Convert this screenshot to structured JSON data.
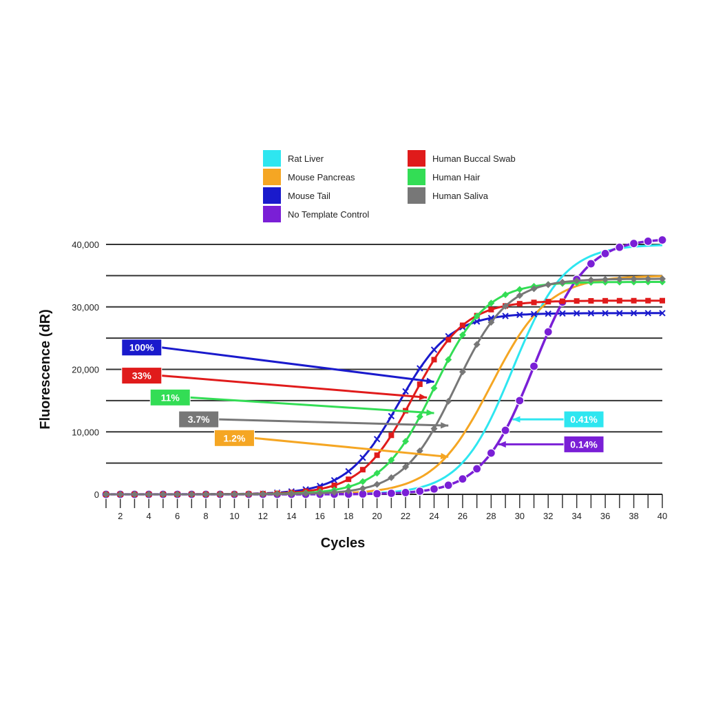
{
  "chart_data": {
    "type": "line",
    "xlabel": "Cycles",
    "ylabel": "Fluorescence (dR)",
    "xlim": [
      1,
      40
    ],
    "ylim": [
      0,
      40000
    ],
    "x_ticks": [
      "2",
      "4",
      "6",
      "8",
      "10",
      "12",
      "14",
      "16",
      "18",
      "20",
      "22",
      "24",
      "26",
      "28",
      "30",
      "32",
      "34",
      "36",
      "38",
      "40"
    ],
    "y_ticks": [
      "0",
      "10,000",
      "20,000",
      "30,000",
      "40,000"
    ],
    "gridlines_y": [
      0,
      5000,
      10000,
      15000,
      20000,
      25000,
      30000,
      35000,
      40000
    ],
    "legend_position": "top-center",
    "series": [
      {
        "name": "Rat Liver",
        "color": "#2ee6f0",
        "marker": "none",
        "ct": 29.5,
        "plateau": 40000,
        "k": 0.55
      },
      {
        "name": "Mouse Pancreas",
        "color": "#f5a623",
        "marker": "none",
        "ct": 28.0,
        "plateau": 35000,
        "k": 0.5
      },
      {
        "name": "Mouse Tail",
        "color": "#1a1acc",
        "marker": "x",
        "ct": 21.5,
        "plateau": 29000,
        "k": 0.55
      },
      {
        "name": "No Template Control",
        "color": "#7a1fd6",
        "marker": "circle",
        "ct": 31.0,
        "plateau": 41000,
        "k": 0.55
      },
      {
        "name": "Human Buccal Swab",
        "color": "#e01b1b",
        "marker": "square",
        "ct": 22.5,
        "plateau": 31000,
        "k": 0.55
      },
      {
        "name": "Human Hair",
        "color": "#33dd55",
        "marker": "diamond",
        "ct": 24.0,
        "plateau": 34000,
        "k": 0.55
      },
      {
        "name": "Human Saliva",
        "color": "#777777",
        "marker": "diamond",
        "ct": 25.5,
        "plateau": 34500,
        "k": 0.55
      }
    ],
    "annotations": [
      {
        "text": "100%",
        "color": "#1a1acc",
        "x": 24,
        "y": 18000,
        "label_x": 3.5,
        "label_y": 23500
      },
      {
        "text": "33%",
        "color": "#e01b1b",
        "x": 23.5,
        "y": 15500,
        "label_x": 3.5,
        "label_y": 19000
      },
      {
        "text": "11%",
        "color": "#33dd55",
        "x": 24,
        "y": 13000,
        "label_x": 5.5,
        "label_y": 15500
      },
      {
        "text": "3.7%",
        "color": "#777777",
        "x": 25,
        "y": 11000,
        "label_x": 7.5,
        "label_y": 12000
      },
      {
        "text": "1.2%",
        "color": "#f5a623",
        "x": 25,
        "y": 6000,
        "label_x": 10,
        "label_y": 9000
      },
      {
        "text": "0.41%",
        "color": "#2ee6f0",
        "x": 29.5,
        "y": 12000,
        "label_x": 34.5,
        "label_y": 12000
      },
      {
        "text": "0.14%",
        "color": "#7a1fd6",
        "x": 28.5,
        "y": 8000,
        "label_x": 34.5,
        "label_y": 8000
      }
    ]
  }
}
